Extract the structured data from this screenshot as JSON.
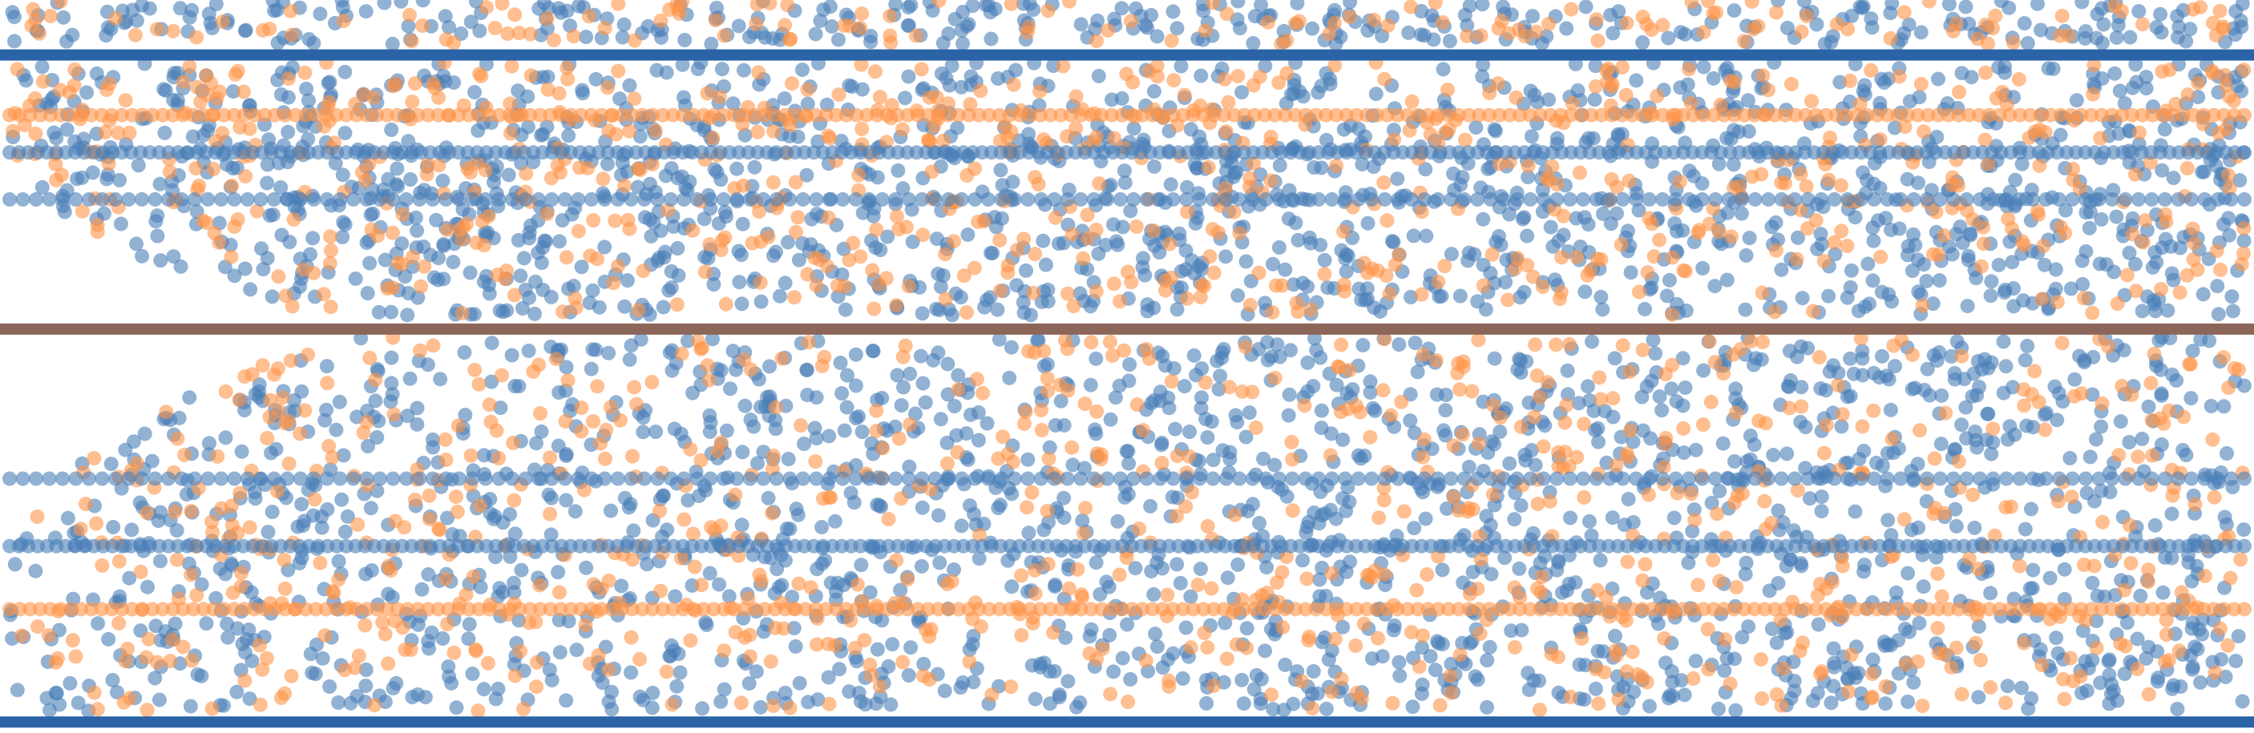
{
  "chart_data": {
    "type": "scatter",
    "title": "",
    "xlabel": "",
    "ylabel": "",
    "grid": false,
    "legend": "none",
    "axes_visible": false,
    "xlim": [
      0,
      1
    ],
    "ylim": [
      0,
      1
    ],
    "series": [
      {
        "key": "blue",
        "color": "#4a7fb8",
        "opacity": 0.6
      },
      {
        "key": "orange",
        "color": "#ff9548",
        "opacity": 0.6
      }
    ],
    "rule_lines": [
      {
        "name": "top-boundary",
        "y": 0.925,
        "color": "#2a63a6"
      },
      {
        "name": "middle-divider",
        "y": 0.551,
        "color": "#8c6659"
      },
      {
        "name": "bottom-boundary",
        "y": 0.015,
        "color": "#2a63a6"
      }
    ],
    "dotted_rows": [
      {
        "name": "upper-orange-row",
        "y": 0.843,
        "series": "orange",
        "count": 220
      },
      {
        "name": "upper-blue-row-1",
        "y": 0.792,
        "series": "blue",
        "count": 240
      },
      {
        "name": "upper-blue-row-2",
        "y": 0.728,
        "series": "blue",
        "count": 170
      },
      {
        "name": "lower-blue-row-1",
        "y": 0.347,
        "series": "blue",
        "count": 170
      },
      {
        "name": "lower-blue-row-2",
        "y": 0.255,
        "series": "blue",
        "count": 240
      },
      {
        "name": "lower-orange-row",
        "y": 0.169,
        "series": "orange",
        "count": 220
      }
    ],
    "scatter_bands": [
      {
        "name": "top-band",
        "y_min": 0.94,
        "y_max": 1.0,
        "n_blue": 320,
        "n_orange": 140,
        "taper": false
      },
      {
        "name": "upper-band",
        "y_min": 0.57,
        "y_max": 0.915,
        "n_blue": 1500,
        "n_orange": 700,
        "taper": "bottom"
      },
      {
        "name": "lower-band",
        "y_min": 0.03,
        "y_max": 0.54,
        "n_blue": 1850,
        "n_orange": 850,
        "taper": "top"
      }
    ],
    "marker_radius": 9
  }
}
